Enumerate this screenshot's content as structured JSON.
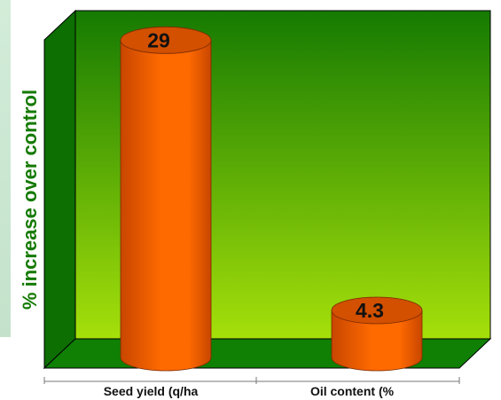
{
  "chart_data": {
    "type": "bar",
    "categories": [
      "Seed yield (q/ha",
      "Oil content (%"
    ],
    "values": [
      29,
      4.3
    ],
    "value_labels": [
      "29",
      "4.3"
    ],
    "title": "",
    "xlabel": "",
    "ylabel": "% increase over control",
    "ylim": [
      0,
      30
    ],
    "grid": false,
    "legend": "none",
    "style": "3d-cylinder"
  },
  "colors": {
    "background_top": "#157a02",
    "background_bottom": "#a6e00a",
    "floor": "#0f8004",
    "bar": "#ff6a00",
    "bar_dark": "#c84600",
    "bar_top": "#d25000",
    "axis_title": "#157a02"
  }
}
